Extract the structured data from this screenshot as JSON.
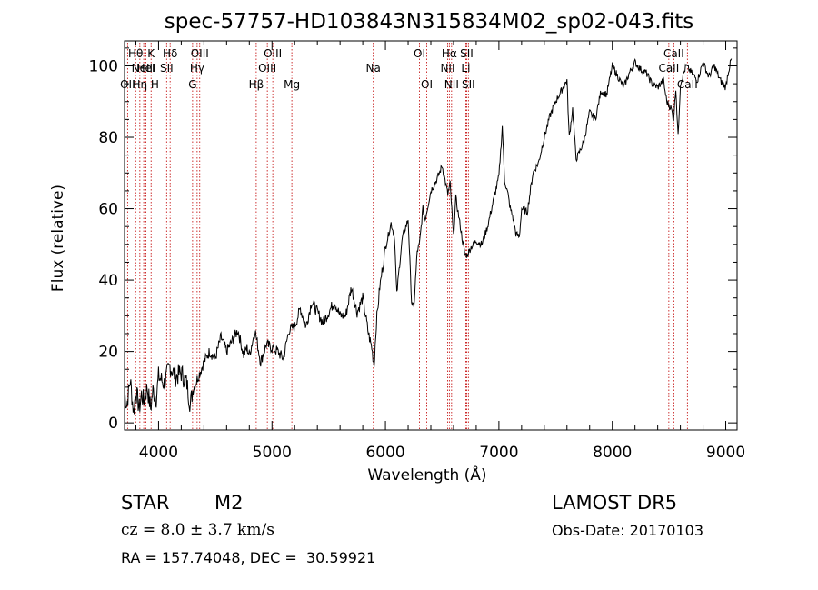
{
  "chart_data": {
    "type": "line",
    "title": "spec-57757-HD103843N315834M02_sp02-043.fits",
    "xlabel": "Wavelength (Å)",
    "ylabel": "Flux (relative)",
    "xlim": [
      3700,
      9100
    ],
    "ylim": [
      -2,
      107
    ],
    "x_ticks": [
      4000,
      5000,
      6000,
      7000,
      8000,
      9000
    ],
    "y_ticks": [
      0,
      20,
      40,
      60,
      80,
      100
    ],
    "grid": false,
    "line_color": "#000000",
    "marker_color": "#c00000",
    "series": [
      {
        "x": [
          3700,
          3720,
          3750,
          3780,
          3800,
          3830,
          3850,
          3870,
          3900,
          3930,
          3950,
          3980,
          4000,
          4050,
          4100,
          4150,
          4200,
          4250,
          4280,
          4300,
          4350,
          4400,
          4450,
          4500,
          4550,
          4600,
          4650,
          4700,
          4750,
          4780,
          4800,
          4830,
          4850,
          4900,
          4950,
          5000,
          5050,
          5100,
          5150,
          5200,
          5250,
          5300,
          5350,
          5400,
          5450,
          5500,
          5550,
          5600,
          5650,
          5700,
          5750,
          5800,
          5850,
          5880,
          5900,
          5920,
          5950,
          6000,
          6050,
          6080,
          6100,
          6120,
          6150,
          6200,
          6230,
          6250,
          6280,
          6300,
          6330,
          6350,
          6400,
          6450,
          6500,
          6550,
          6570,
          6600,
          6620,
          6650,
          6700,
          6720,
          6750,
          6800,
          6850,
          6900,
          6950,
          7000,
          7030,
          7050,
          7080,
          7100,
          7120,
          7150,
          7180,
          7200,
          7250,
          7300,
          7350,
          7400,
          7450,
          7500,
          7550,
          7600,
          7620,
          7650,
          7680,
          7700,
          7750,
          7800,
          7850,
          7900,
          7950,
          8000,
          8050,
          8100,
          8150,
          8200,
          8250,
          8300,
          8350,
          8400,
          8450,
          8480,
          8500,
          8520,
          8540,
          8560,
          8580,
          8600,
          8620,
          8650,
          8700,
          8750,
          8800,
          8850,
          8900,
          8950,
          9000,
          9020,
          9050
        ],
        "y": [
          8,
          5,
          12,
          3,
          9,
          4,
          8,
          6,
          10,
          4,
          9,
          7,
          13,
          11,
          16,
          13,
          14,
          11,
          5,
          9,
          13,
          17,
          20,
          18,
          24,
          20,
          23,
          26,
          19,
          21,
          19,
          23,
          26,
          17,
          22,
          21,
          20,
          18,
          26,
          27,
          32,
          27,
          34,
          31,
          28,
          31,
          34,
          30,
          30,
          38,
          31,
          35,
          25,
          21,
          16,
          28,
          38,
          49,
          56,
          52,
          36,
          43,
          52,
          57,
          34,
          32,
          48,
          50,
          60,
          57,
          65,
          68,
          72,
          64,
          67,
          52,
          63,
          57,
          47,
          47,
          49,
          51,
          50,
          55,
          62,
          69,
          83,
          68,
          64,
          60,
          58,
          53,
          52,
          60,
          59,
          70,
          73,
          80,
          86,
          90,
          93,
          96,
          80,
          88,
          74,
          75,
          79,
          87,
          85,
          93,
          92,
          100,
          97,
          94,
          98,
          101,
          99,
          98,
          95,
          94,
          96,
          90,
          89,
          88,
          85,
          94,
          80,
          95,
          97,
          100,
          98,
          96,
          101,
          97,
          100,
          96,
          94,
          98,
          102
        ]
      }
    ],
    "line_markers": [
      {
        "wl": 3727,
        "label": "OII",
        "row": 3
      },
      {
        "wl": 3798,
        "label": "Hθ",
        "row": 1
      },
      {
        "wl": 3835,
        "label": "Hη",
        "row": 3
      },
      {
        "wl": 3869,
        "label": "NeIII",
        "row": 2
      },
      {
        "wl": 3889,
        "label": "HeI",
        "row": 2
      },
      {
        "wl": 3934,
        "label": "K",
        "row": 1
      },
      {
        "wl": 3968,
        "label": "H",
        "row": 3
      },
      {
        "wl": 4071,
        "label": "SII",
        "row": 2
      },
      {
        "wl": 4102,
        "label": "Hδ",
        "row": 1
      },
      {
        "wl": 4300,
        "label": "G",
        "row": 3
      },
      {
        "wl": 4340,
        "label": "Hγ",
        "row": 2
      },
      {
        "wl": 4363,
        "label": "OIII",
        "row": 1
      },
      {
        "wl": 4861,
        "label": "Hβ",
        "row": 3
      },
      {
        "wl": 4959,
        "label": "OIII",
        "row": 2
      },
      {
        "wl": 5007,
        "label": "OIII",
        "row": 1
      },
      {
        "wl": 5175,
        "label": "Mg",
        "row": 3
      },
      {
        "wl": 5893,
        "label": "Na",
        "row": 2
      },
      {
        "wl": 6300,
        "label": "OI",
        "row": 1
      },
      {
        "wl": 6364,
        "label": "OI",
        "row": 3
      },
      {
        "wl": 6548,
        "label": "NII",
        "row": 2
      },
      {
        "wl": 6563,
        "label": "Hα",
        "row": 1
      },
      {
        "wl": 6583,
        "label": "NII",
        "row": 3
      },
      {
        "wl": 6708,
        "label": "Li",
        "row": 2
      },
      {
        "wl": 6716,
        "label": "SII",
        "row": 1
      },
      {
        "wl": 6731,
        "label": "SII",
        "row": 3
      },
      {
        "wl": 8498,
        "label": "CaII",
        "row": 2
      },
      {
        "wl": 8542,
        "label": "CaII",
        "row": 1
      },
      {
        "wl": 8662,
        "label": "CaII",
        "row": 3
      }
    ]
  },
  "info": {
    "object_class": "STAR",
    "subclass": "M2",
    "survey": "LAMOST DR5",
    "velocity": "cz = 8.0 ± 3.7 km/s",
    "obs_date": "Obs-Date: 20170103",
    "coords": "RA = 157.74048, DEC =  30.59921"
  }
}
